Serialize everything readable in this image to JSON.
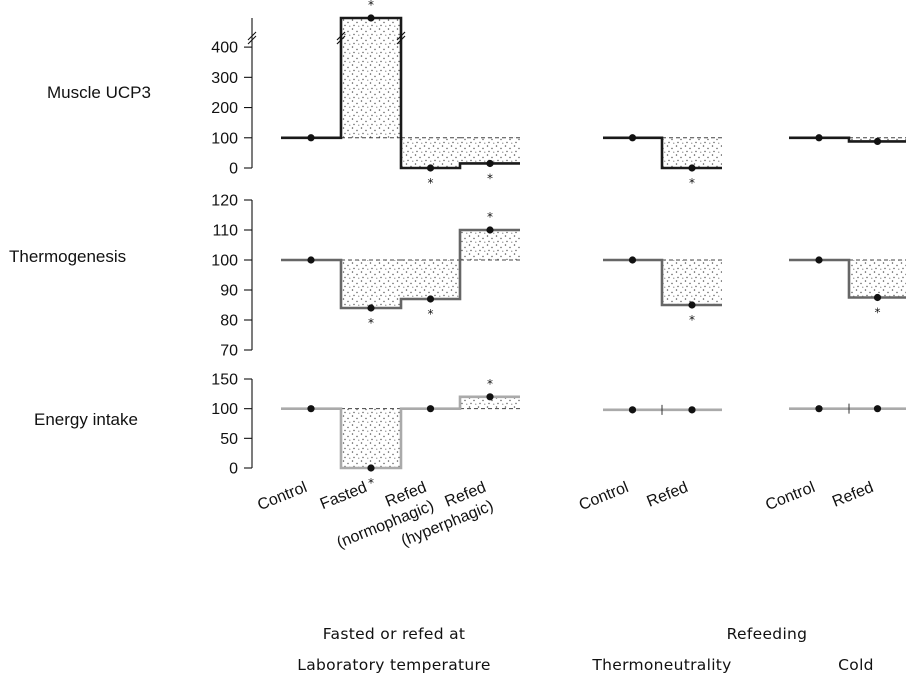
{
  "colors": {
    "muscle_line": "#1a1a1a",
    "thermo_line": "#666666",
    "energy_line": "#aaaaaa",
    "stipple": "#555555",
    "point": "#111111"
  },
  "chart_data": [
    {
      "type": "line",
      "panel_label": "Muscle UCP3",
      "y_ticks": [
        "0",
        "100",
        "200",
        "300",
        "400"
      ],
      "ylim": [
        0,
        450
      ],
      "axis_break": true,
      "categories": [
        "Control",
        "Fasted",
        "Refed (normophagic)",
        "Refed (hyperphagic)",
        "Control",
        "Refed",
        "Control",
        "Refed"
      ],
      "values": [
        100,
        500,
        0,
        15,
        100,
        0,
        100,
        88
      ],
      "significant": [
        false,
        true,
        true,
        true,
        false,
        true,
        false,
        false
      ],
      "baseline": 100
    },
    {
      "type": "line",
      "panel_label": "Thermogenesis",
      "y_ticks": [
        "70",
        "80",
        "90",
        "100",
        "110",
        "120"
      ],
      "ylim": [
        70,
        120
      ],
      "categories": [
        "Control",
        "Fasted",
        "Refed (normophagic)",
        "Refed (hyperphagic)",
        "Control",
        "Refed",
        "Control",
        "Refed"
      ],
      "values": [
        100,
        84,
        87,
        110,
        100,
        85,
        100,
        87.5
      ],
      "significant": [
        false,
        true,
        true,
        true,
        false,
        true,
        false,
        true
      ],
      "baseline": 100
    },
    {
      "type": "line",
      "panel_label": "Energy intake",
      "y_ticks": [
        "0",
        "50",
        "100",
        "150"
      ],
      "ylim": [
        0,
        150
      ],
      "categories": [
        "Control",
        "Fasted",
        "Refed (normophagic)",
        "Refed (hyperphagic)",
        "Control",
        "Refed",
        "Control",
        "Refed"
      ],
      "values": [
        100,
        0,
        100,
        120,
        98,
        98,
        100,
        100
      ],
      "significant": [
        false,
        true,
        false,
        true,
        false,
        false,
        false,
        false
      ],
      "baseline": 100
    }
  ],
  "x_labels": {
    "group1": [
      {
        "lines": [
          "Control"
        ]
      },
      {
        "lines": [
          "Fasted"
        ]
      },
      {
        "lines": [
          "Refed",
          "(normophagic)"
        ]
      },
      {
        "lines": [
          "Refed",
          "(hyperphagic)"
        ]
      }
    ],
    "group2": [
      {
        "lines": [
          "Control"
        ]
      },
      {
        "lines": [
          "Refed"
        ]
      }
    ],
    "group3": [
      {
        "lines": [
          "Control"
        ]
      },
      {
        "lines": [
          "Refed"
        ]
      }
    ]
  },
  "footer": {
    "left_line1": "Fasted or refed at",
    "left_line2": "Laboratory temperature",
    "right_line1": "Refeeding",
    "right_line2a": "Thermoneutrality",
    "right_line2b": "Cold"
  },
  "significance_marker": "*"
}
